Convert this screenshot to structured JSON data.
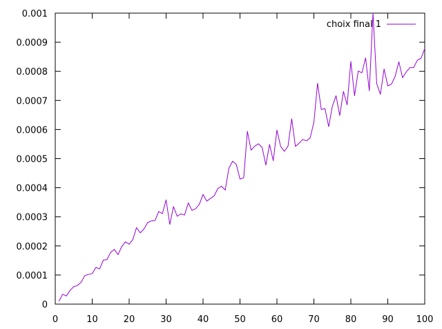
{
  "chart_data": {
    "type": "line",
    "title": "",
    "xlabel": "",
    "ylabel": "",
    "xlim": [
      0,
      100
    ],
    "ylim": [
      0,
      0.001
    ],
    "grid": false,
    "legend_position": "top-right",
    "x_ticks": [
      "0",
      "10",
      "20",
      "30",
      "40",
      "50",
      "60",
      "70",
      "80",
      "90",
      "100"
    ],
    "y_ticks": [
      "0",
      "0.0001",
      "0.0002",
      "0.0003",
      "0.0004",
      "0.0005",
      "0.0006",
      "0.0007",
      "0.0008",
      "0.0009",
      "0.001"
    ],
    "series": [
      {
        "name": "choix final 1",
        "color": "#9400d3",
        "x": [
          1,
          2,
          3,
          4,
          5,
          6,
          7,
          8,
          9,
          10,
          11,
          12,
          13,
          14,
          15,
          16,
          17,
          18,
          19,
          20,
          21,
          22,
          23,
          24,
          25,
          26,
          27,
          28,
          29,
          30,
          31,
          32,
          33,
          34,
          35,
          36,
          37,
          38,
          39,
          40,
          41,
          42,
          43,
          44,
          45,
          46,
          47,
          48,
          49,
          50,
          51,
          52,
          53,
          54,
          55,
          56,
          57,
          58,
          59,
          60,
          61,
          62,
          63,
          64,
          65,
          66,
          67,
          68,
          69,
          70,
          71,
          72,
          73,
          74,
          75,
          76,
          77,
          78,
          79,
          80,
          81,
          82,
          83,
          84,
          85,
          86,
          87,
          88,
          89,
          90,
          91,
          92,
          93,
          94,
          95,
          96,
          97,
          98,
          99,
          100
        ],
        "values": [
          1e-05,
          3.4e-05,
          2.8e-05,
          4.7e-05,
          6e-05,
          6.4e-05,
          7.5e-05,
          9.8e-05,
          0.000102,
          0.000105,
          0.000126,
          0.000121,
          0.000151,
          0.000153,
          0.000178,
          0.000188,
          0.00017,
          0.000198,
          0.000214,
          0.000206,
          0.000222,
          0.000263,
          0.000245,
          0.000258,
          0.00028,
          0.000286,
          0.000287,
          0.000318,
          0.000311,
          0.000358,
          0.000274,
          0.000335,
          0.000302,
          0.00031,
          0.000306,
          0.000348,
          0.000322,
          0.000328,
          0.000343,
          0.000377,
          0.000354,
          0.000363,
          0.000372,
          0.000397,
          0.000405,
          0.000392,
          0.000467,
          0.000491,
          0.00048,
          0.00043,
          0.000434,
          0.000594,
          0.000529,
          0.000543,
          0.000551,
          0.000538,
          0.000478,
          0.000549,
          0.000493,
          0.000598,
          0.000542,
          0.000525,
          0.000543,
          0.000637,
          0.000542,
          0.000553,
          0.000566,
          0.000561,
          0.000572,
          0.000625,
          0.000759,
          0.000669,
          0.000672,
          0.00061,
          0.00068,
          0.000716,
          0.000648,
          0.000731,
          0.000685,
          0.000834,
          0.000716,
          0.000801,
          0.000795,
          0.000846,
          0.000733,
          0.001,
          0.000758,
          0.000721,
          0.000808,
          0.00075,
          0.000756,
          0.000783,
          0.000833,
          0.000778,
          0.000798,
          0.000813,
          0.000813,
          0.000838,
          0.000845,
          0.000878
        ]
      }
    ]
  }
}
